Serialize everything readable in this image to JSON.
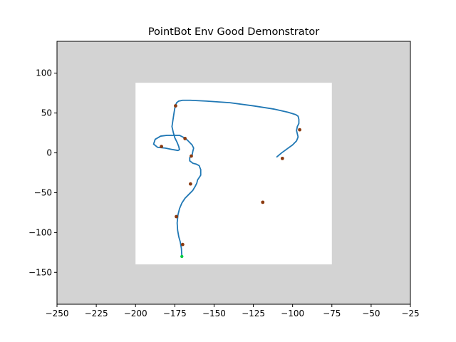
{
  "chart_data": {
    "type": "line",
    "title": "PointBot Env Good Demonstrator",
    "xlabel": "",
    "ylabel": "",
    "xlim": [
      -250,
      -25
    ],
    "ylim": [
      -190,
      140
    ],
    "grid": false,
    "x_ticks": [
      -250,
      -225,
      -200,
      -175,
      -150,
      -125,
      -100,
      -75,
      -50,
      -25
    ],
    "y_ticks": [
      -150,
      -100,
      -50,
      0,
      50,
      100
    ],
    "x_tick_labels": [
      "−250",
      "−225",
      "−200",
      "−175",
      "−150",
      "−125",
      "−100",
      "−75",
      "−50",
      "−25"
    ],
    "y_tick_labels": [
      "−150",
      "−100",
      "−50",
      "0",
      "50",
      "100"
    ],
    "regions": [
      {
        "name": "obstacle-region",
        "x": [
          -250,
          -25
        ],
        "y": [
          -190,
          140
        ],
        "color": "#d3d3d3"
      },
      {
        "name": "free-region",
        "x": [
          -200,
          -75
        ],
        "y": [
          -140,
          88
        ],
        "color": "#ffffff"
      }
    ],
    "series": [
      {
        "type": "line",
        "color": "#1f77b4",
        "x": [
          -170.5,
          -170.8,
          -171.5,
          -172.5,
          -173.2,
          -173.5,
          -173.0,
          -172.0,
          -170.5,
          -168.5,
          -166.0,
          -163.5,
          -162.0,
          -161.0,
          -160.5,
          -159.5,
          -158.5,
          -158.5,
          -159.5,
          -161.5,
          -163.5,
          -165.5,
          -165.5,
          -164.0,
          -163.5,
          -163.0,
          -164.0,
          -166.0,
          -167.0,
          -169.0,
          -172.0,
          -176.0,
          -180.0,
          -184.0,
          -187.5,
          -188.5,
          -186.0,
          -181.0,
          -176.0,
          -173.0,
          -172.0,
          -172.5,
          -173.5,
          -175.0,
          -176.0,
          -176.8,
          -176.2,
          -175.5,
          -175.0,
          -174.5,
          -173.8,
          -172.5,
          -170.0,
          -165.0,
          -155.0,
          -140.0,
          -125.0,
          -112.0,
          -103.0,
          -98.0,
          -96.5,
          -96.0,
          -96.0,
          -97.0,
          -97.5,
          -97.0,
          -96.5,
          -97.5,
          -100.0,
          -103.5,
          -107.0,
          -110.0
        ],
        "y": [
          -130,
          -120,
          -112,
          -105,
          -97,
          -88,
          -78,
          -70,
          -63,
          -57,
          -52,
          -47,
          -42,
          -38,
          -34,
          -31,
          -28,
          -21,
          -16,
          -14,
          -13,
          -10,
          -6,
          -3,
          2,
          6,
          10,
          14,
          16,
          19,
          22,
          22,
          22,
          21,
          17,
          11,
          7,
          6,
          4,
          3,
          4,
          8,
          13,
          19,
          26,
          33,
          41,
          50,
          56,
          60,
          63,
          65,
          66,
          66,
          65,
          63,
          59,
          55,
          51,
          48,
          46,
          42,
          37,
          33,
          28,
          24,
          20,
          15,
          10,
          5,
          0,
          -5
        ]
      }
    ],
    "points": {
      "color": "#8b3a0f",
      "x": [
        -174.5,
        -168.5,
        -183.5,
        -164.5,
        -165.0,
        -174.0,
        -170.0,
        -119.0,
        -106.5,
        -95.5
      ],
      "y": [
        59,
        18,
        8,
        -4,
        -39,
        -80,
        -115,
        -62,
        -7,
        29
      ]
    },
    "start_point": {
      "x": -170.5,
      "y": -130,
      "color": "#00cc44"
    }
  }
}
